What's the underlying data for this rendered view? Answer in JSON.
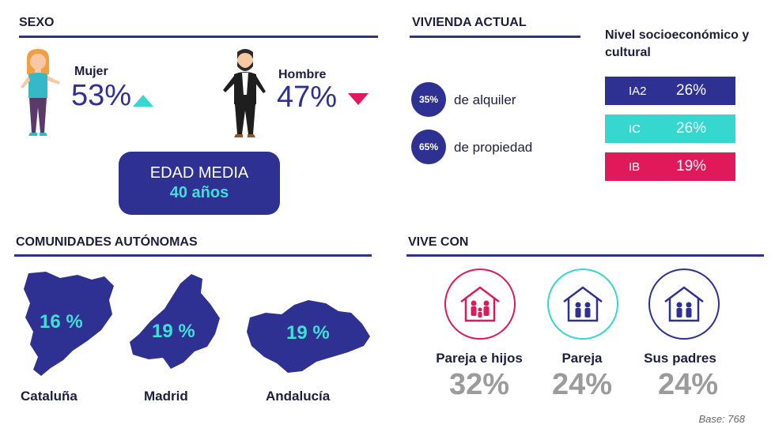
{
  "sexo": {
    "heading": "SEXO",
    "mujer": {
      "label": "Mujer",
      "pct": "53%"
    },
    "hombre": {
      "label": "Hombre",
      "pct": "47%"
    },
    "edad": {
      "title": "EDAD MEDIA",
      "value": "40 años"
    }
  },
  "vivienda": {
    "heading": "VIVIENDA ACTUAL",
    "items": [
      {
        "pct": "35%",
        "label": "de alquiler"
      },
      {
        "pct": "65%",
        "label": "de propiedad"
      }
    ]
  },
  "nivel": {
    "heading_line1": "Nivel socioeconómico y",
    "heading_line2": "cultural",
    "items": [
      {
        "code": "IA2",
        "pct": "26%",
        "color": "#2e3192"
      },
      {
        "code": "IC",
        "pct": "26%",
        "color": "#35d7cf"
      },
      {
        "code": "IB",
        "pct": "19%",
        "color": "#e0195a"
      }
    ]
  },
  "comunidades": {
    "heading": "COMUNIDADES AUTÓNOMAS",
    "items": [
      {
        "name": "Cataluña",
        "pct": "16 %"
      },
      {
        "name": "Madrid",
        "pct": "19 %"
      },
      {
        "name": "Andalucía",
        "pct": "19 %"
      }
    ]
  },
  "vive_con": {
    "heading": "VIVE CON",
    "items": [
      {
        "label": "Pareja e hijos",
        "pct": "32%",
        "color": "#e0195a"
      },
      {
        "label": "Pareja",
        "pct": "24%",
        "color": "#35d7cf"
      },
      {
        "label": "Sus padres",
        "pct": "24%",
        "color": "#2e3192"
      }
    ]
  },
  "colors": {
    "navy": "#2e3192",
    "teal": "#35d7cf",
    "magenta": "#e0195a",
    "grey": "#9b9b9b"
  },
  "base": "Base: 768"
}
